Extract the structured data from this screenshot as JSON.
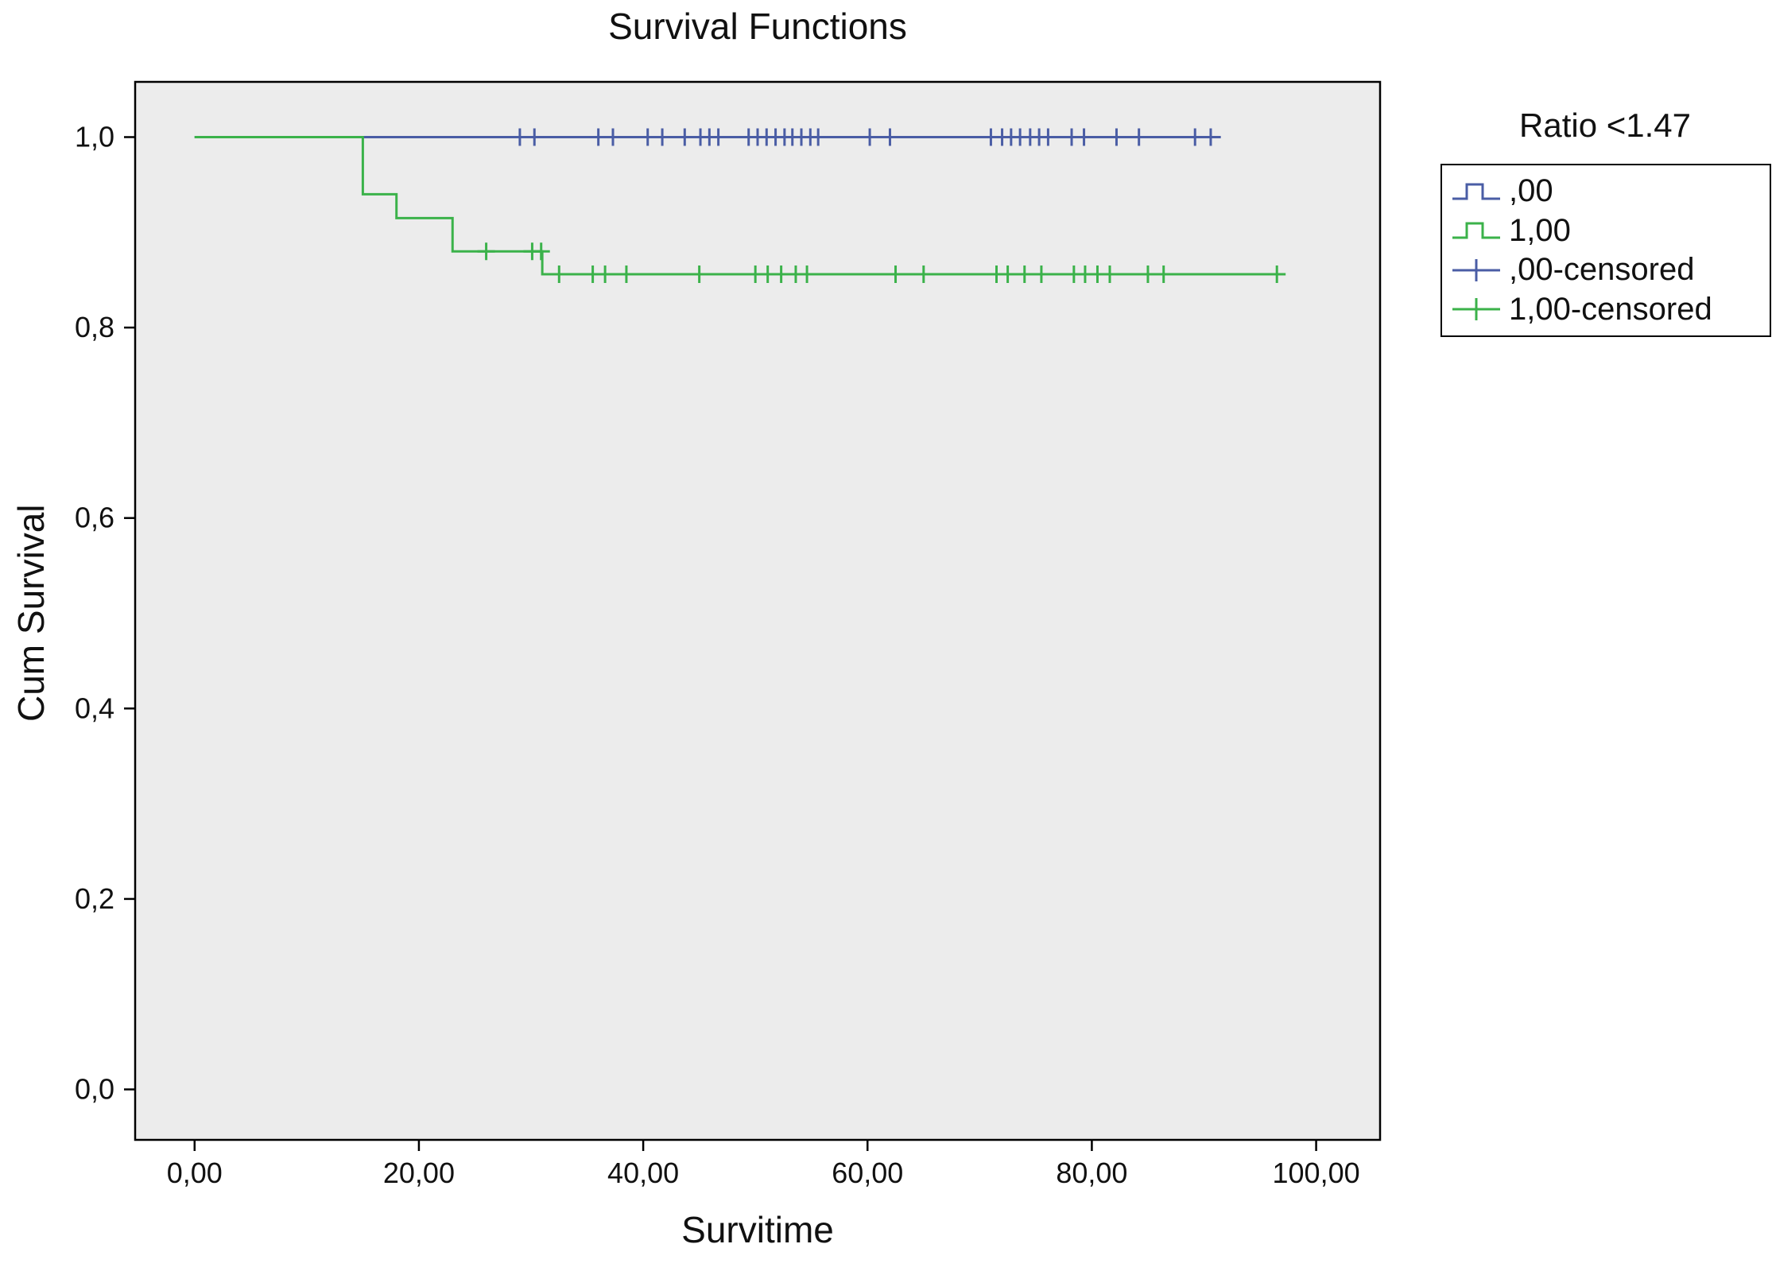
{
  "figure": {
    "title": "Survival Functions",
    "xlabel": "Survitime",
    "ylabel": "Cum Survival"
  },
  "chart_data": {
    "type": "line",
    "kind": "kaplan-meier-step",
    "title": "Survival Functions",
    "xlabel": "Survitime",
    "ylabel": "Cum Survival",
    "xlim": [
      -5.3,
      105.7
    ],
    "ylim": [
      -0.053,
      1.058
    ],
    "grid": false,
    "legend_position": "right",
    "plot_bg": "#ececec",
    "frame_color": "#000000",
    "xticks": {
      "values": [
        0,
        20,
        40,
        60,
        80,
        100
      ],
      "labels": [
        "0,00",
        "20,00",
        "40,00",
        "60,00",
        "80,00",
        "100,00"
      ]
    },
    "yticks": {
      "values": [
        0.0,
        0.2,
        0.4,
        0.6,
        0.8,
        1.0
      ],
      "labels": [
        "0,0",
        "0,2",
        "0,4",
        "0,6",
        "0,8",
        "1,0"
      ]
    },
    "series": [
      {
        "name": ",00",
        "color": "#4a5da5",
        "steps": [
          [
            0,
            1.0
          ],
          [
            91.5,
            1.0
          ]
        ]
      },
      {
        "name": "1,00",
        "color": "#3bb24a",
        "steps": [
          [
            0,
            1.0
          ],
          [
            15,
            1.0
          ],
          [
            15,
            0.94
          ],
          [
            18,
            0.94
          ],
          [
            18,
            0.915
          ],
          [
            23,
            0.915
          ],
          [
            23,
            0.88
          ],
          [
            31,
            0.88
          ],
          [
            31,
            0.856
          ],
          [
            96.5,
            0.856
          ]
        ]
      }
    ],
    "censored": [
      {
        "name": ",00-censored",
        "color": "#4a5da5",
        "points": [
          [
            29,
            1
          ],
          [
            30.3,
            1
          ],
          [
            36,
            1
          ],
          [
            37.3,
            1
          ],
          [
            40.4,
            1
          ],
          [
            41.7,
            1
          ],
          [
            43.7,
            1
          ],
          [
            45.1,
            1
          ],
          [
            45.9,
            1
          ],
          [
            46.7,
            1
          ],
          [
            49.4,
            1
          ],
          [
            50.2,
            1
          ],
          [
            51,
            1
          ],
          [
            51.8,
            1
          ],
          [
            52.6,
            1
          ],
          [
            53.3,
            1
          ],
          [
            54.1,
            1
          ],
          [
            54.9,
            1
          ],
          [
            55.6,
            1
          ],
          [
            60.2,
            1
          ],
          [
            62,
            1
          ],
          [
            71,
            1
          ],
          [
            72,
            1
          ],
          [
            72.8,
            1
          ],
          [
            73.6,
            1
          ],
          [
            74.5,
            1
          ],
          [
            75.3,
            1
          ],
          [
            76.1,
            1
          ],
          [
            78.2,
            1
          ],
          [
            79.3,
            1
          ],
          [
            82.2,
            1
          ],
          [
            84.2,
            1
          ],
          [
            89.2,
            1
          ],
          [
            90.6,
            1
          ]
        ]
      },
      {
        "name": "1,00-censored",
        "color": "#3bb24a",
        "points": [
          [
            26,
            0.88
          ],
          [
            30.1,
            0.88
          ],
          [
            30.9,
            0.88
          ],
          [
            32.5,
            0.856
          ],
          [
            35.5,
            0.856
          ],
          [
            36.6,
            0.856
          ],
          [
            38.5,
            0.856
          ],
          [
            45,
            0.856
          ],
          [
            50,
            0.856
          ],
          [
            51.1,
            0.856
          ],
          [
            52.3,
            0.856
          ],
          [
            53.6,
            0.856
          ],
          [
            54.6,
            0.856
          ],
          [
            62.5,
            0.856
          ],
          [
            65,
            0.856
          ],
          [
            71.5,
            0.856
          ],
          [
            72.5,
            0.856
          ],
          [
            74,
            0.856
          ],
          [
            75.5,
            0.856
          ],
          [
            78.4,
            0.856
          ],
          [
            79.4,
            0.856
          ],
          [
            80.5,
            0.856
          ],
          [
            81.6,
            0.856
          ],
          [
            85,
            0.856
          ],
          [
            86.4,
            0.856
          ],
          [
            96.5,
            0.856
          ]
        ]
      }
    ],
    "legend": {
      "title": "Ratio <1.47",
      "items": [
        {
          "label": ",00",
          "glyph": "step-line",
          "color": "#4a5da5"
        },
        {
          "label": "1,00",
          "glyph": "step-line",
          "color": "#3bb24a"
        },
        {
          "label": ",00-censored",
          "glyph": "censored-plus",
          "color": "#4a5da5"
        },
        {
          "label": "1,00-censored",
          "glyph": "censored-plus",
          "color": "#3bb24a"
        }
      ]
    }
  }
}
